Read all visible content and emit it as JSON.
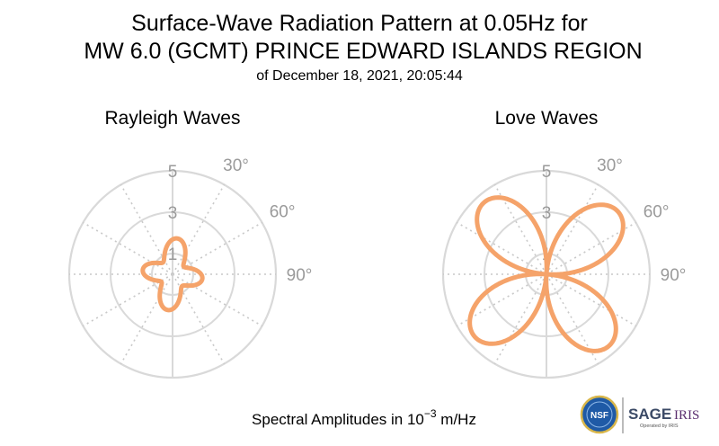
{
  "header": {
    "title_line1": "Surface-Wave Radiation Pattern at 0.05Hz for",
    "title_line2": "MW 6.0 (GCMT) PRINCE EDWARD ISLANDS REGION",
    "subtitle": "of December 18, 2021, 20:05:44"
  },
  "footer": {
    "caption_prefix": "Spectral Amplitudes in 10",
    "caption_exp": "−3",
    "caption_suffix": " m/Hz"
  },
  "logos": {
    "nsf": "NSF",
    "sage": "SAGE",
    "iris": "IRIS",
    "operated": "Operated by IRIS",
    "nsf_color": "#1f5aa6",
    "sage_color": "#3b4a66",
    "iris_color": "#5a2e6f"
  },
  "chart_data": [
    {
      "type": "polar-line",
      "title": "Rayleigh Waves",
      "radial_ticks": [
        1,
        3,
        5
      ],
      "radial_tick_labels": [
        "1",
        "3",
        "5"
      ],
      "rmax": 5,
      "angle_tick_labels": [
        "30°",
        "60°",
        "90°"
      ],
      "angle_ticks_deg": [
        30,
        60,
        90
      ],
      "color": "#f5a36a",
      "pattern": {
        "form": "r = a + b*cos(2*(theta - phi)) + c*cos(4*(theta - psi))",
        "a": 1.15,
        "b": 0.15,
        "c": 0.45,
        "phi_deg": 0,
        "psi_deg": 8
      }
    },
    {
      "type": "polar-line",
      "title": "Love Waves",
      "radial_ticks": [
        1,
        3,
        5
      ],
      "radial_tick_labels": [
        "1",
        "3",
        "5"
      ],
      "rmax": 5,
      "angle_tick_labels": [
        "30°",
        "60°",
        "90°"
      ],
      "angle_ticks_deg": [
        30,
        60,
        90
      ],
      "color": "#f5a36a",
      "pattern": {
        "form": "r = A*|sin(2*(theta - phi))|",
        "A": 4.6,
        "phi_deg": 4
      }
    }
  ]
}
